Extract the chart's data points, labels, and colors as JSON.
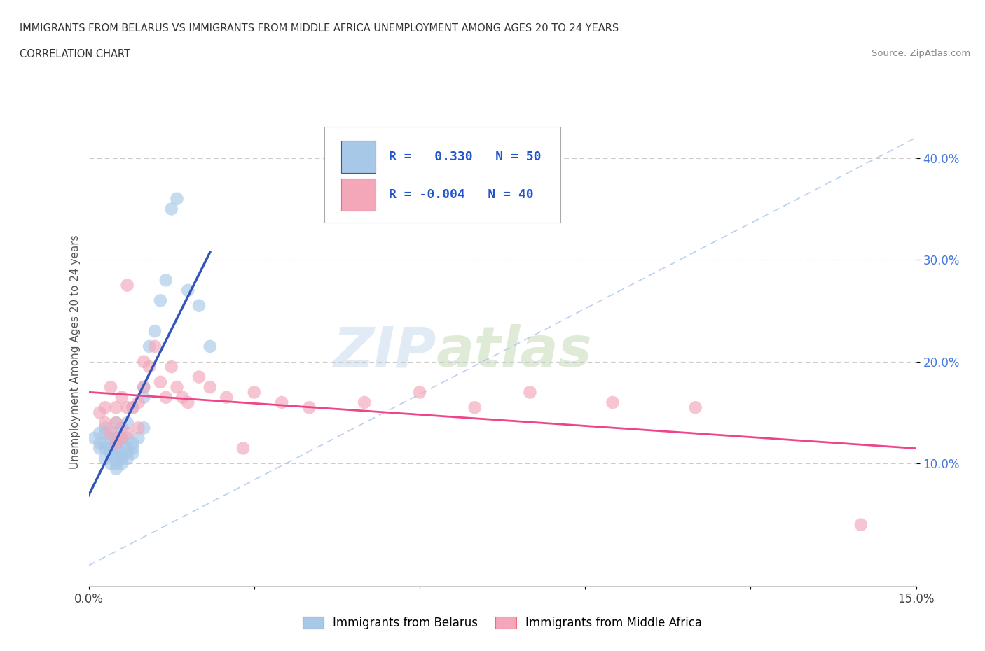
{
  "title_line1": "IMMIGRANTS FROM BELARUS VS IMMIGRANTS FROM MIDDLE AFRICA UNEMPLOYMENT AMONG AGES 20 TO 24 YEARS",
  "title_line2": "CORRELATION CHART",
  "source_text": "Source: ZipAtlas.com",
  "ylabel": "Unemployment Among Ages 20 to 24 years",
  "xlim": [
    0.0,
    0.15
  ],
  "ylim": [
    -0.02,
    0.44
  ],
  "ytick_positions": [
    0.1,
    0.2,
    0.3,
    0.4
  ],
  "ytick_labels": [
    "10.0%",
    "20.0%",
    "30.0%",
    "40.0%"
  ],
  "color_belarus": "#A8C8E8",
  "color_middle_africa": "#F4A7B9",
  "color_line_belarus": "#3355BB",
  "color_line_middle_africa": "#EE4488",
  "color_diagonal": "#A8C4E8",
  "watermark_zip": "ZIP",
  "watermark_atlas": "atlas",
  "legend_label1": "Immigrants from Belarus",
  "legend_label2": "Immigrants from Middle Africa",
  "belarus_x": [
    0.001,
    0.002,
    0.002,
    0.002,
    0.003,
    0.003,
    0.003,
    0.003,
    0.003,
    0.004,
    0.004,
    0.004,
    0.004,
    0.005,
    0.005,
    0.005,
    0.005,
    0.005,
    0.005,
    0.005,
    0.005,
    0.005,
    0.006,
    0.006,
    0.006,
    0.006,
    0.006,
    0.006,
    0.007,
    0.007,
    0.007,
    0.007,
    0.007,
    0.008,
    0.008,
    0.008,
    0.008,
    0.009,
    0.01,
    0.01,
    0.01,
    0.011,
    0.012,
    0.013,
    0.014,
    0.015,
    0.016,
    0.018,
    0.02,
    0.022
  ],
  "belarus_y": [
    0.125,
    0.115,
    0.12,
    0.13,
    0.105,
    0.115,
    0.12,
    0.13,
    0.135,
    0.1,
    0.11,
    0.115,
    0.125,
    0.095,
    0.1,
    0.105,
    0.11,
    0.115,
    0.12,
    0.125,
    0.13,
    0.14,
    0.1,
    0.105,
    0.11,
    0.12,
    0.125,
    0.135,
    0.105,
    0.11,
    0.115,
    0.125,
    0.14,
    0.11,
    0.115,
    0.12,
    0.155,
    0.125,
    0.135,
    0.165,
    0.175,
    0.215,
    0.23,
    0.26,
    0.28,
    0.35,
    0.36,
    0.27,
    0.255,
    0.215
  ],
  "middle_africa_x": [
    0.002,
    0.003,
    0.003,
    0.004,
    0.004,
    0.005,
    0.005,
    0.005,
    0.006,
    0.006,
    0.007,
    0.007,
    0.007,
    0.008,
    0.009,
    0.009,
    0.01,
    0.01,
    0.011,
    0.012,
    0.013,
    0.014,
    0.015,
    0.016,
    0.017,
    0.018,
    0.02,
    0.022,
    0.025,
    0.028,
    0.03,
    0.035,
    0.04,
    0.05,
    0.06,
    0.07,
    0.08,
    0.095,
    0.11,
    0.14
  ],
  "middle_africa_y": [
    0.15,
    0.14,
    0.155,
    0.13,
    0.175,
    0.12,
    0.14,
    0.155,
    0.125,
    0.165,
    0.13,
    0.155,
    0.275,
    0.155,
    0.135,
    0.16,
    0.175,
    0.2,
    0.195,
    0.215,
    0.18,
    0.165,
    0.195,
    0.175,
    0.165,
    0.16,
    0.185,
    0.175,
    0.165,
    0.115,
    0.17,
    0.16,
    0.155,
    0.16,
    0.17,
    0.155,
    0.17,
    0.16,
    0.155,
    0.04
  ]
}
